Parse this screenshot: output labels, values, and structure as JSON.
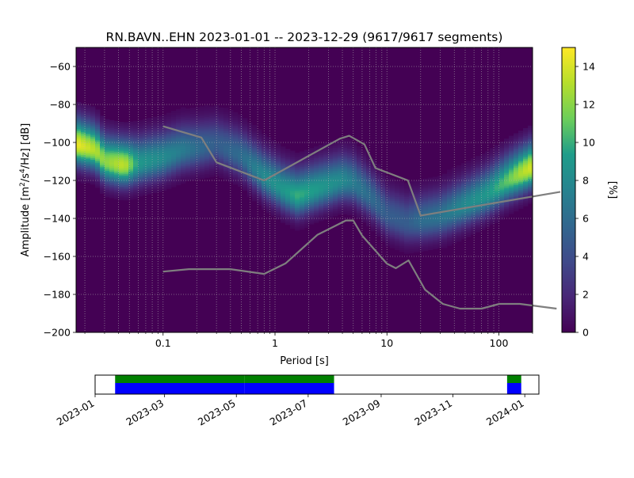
{
  "title": "RN.BAVN..EHN   2023-01-01 -- 2023-12-29  (9617/9617 segments)",
  "chart_data": {
    "type": "heatmap",
    "xlabel": "Period [s]",
    "ylabel_text": "Amplitude [m",
    "ylabel_sup1": "2",
    "ylabel_mid": "/s",
    "ylabel_sup2": "4",
    "ylabel_end": "/Hz] [dB]",
    "x_scale": "log",
    "xlim": [
      0.0167,
      200
    ],
    "ylim": [
      -200,
      -50
    ],
    "x_ticks": [
      {
        "value": 0.1,
        "label": "0.1"
      },
      {
        "value": 1,
        "label": "1"
      },
      {
        "value": 10,
        "label": "10"
      },
      {
        "value": 100,
        "label": "100"
      }
    ],
    "y_ticks": [
      {
        "value": -60,
        "label": "−60"
      },
      {
        "value": -80,
        "label": "−80"
      },
      {
        "value": -100,
        "label": "−100"
      },
      {
        "value": -120,
        "label": "−120"
      },
      {
        "value": -140,
        "label": "−140"
      },
      {
        "value": -160,
        "label": "−160"
      },
      {
        "value": -180,
        "label": "−180"
      },
      {
        "value": -200,
        "label": "−200"
      }
    ],
    "grid": true,
    "colorbar": {
      "label": "[%]",
      "min": 0,
      "max": 15,
      "ticks": [
        {
          "value": 0,
          "label": "0"
        },
        {
          "value": 2,
          "label": "2"
        },
        {
          "value": 4,
          "label": "4"
        },
        {
          "value": 6,
          "label": "6"
        },
        {
          "value": 8,
          "label": "8"
        },
        {
          "value": 10,
          "label": "10"
        },
        {
          "value": 12,
          "label": "12"
        },
        {
          "value": 14,
          "label": "14"
        }
      ],
      "colormap": [
        "#440154",
        "#482777",
        "#3f4a8a",
        "#31678e",
        "#26838f",
        "#1f9d8a",
        "#6cce5a",
        "#b6de2b",
        "#fee825"
      ],
      "background": "#440154"
    },
    "noise_models": [
      {
        "periods": [
          0.1,
          0.22,
          0.3,
          0.8,
          3.8,
          4.6,
          6.3,
          7.9,
          15.4,
          20,
          354
        ],
        "values": [
          -91.5,
          -97.4,
          -110.5,
          -120,
          -98,
          -96.5,
          -101,
          -113.5,
          -120,
          -138.5,
          -126
        ]
      },
      {
        "periods": [
          0.1,
          0.17,
          0.4,
          0.8,
          1.24,
          2.4,
          4.3,
          5,
          6,
          10,
          12,
          15.6,
          21.9,
          31.6,
          45,
          70,
          101,
          154,
          328
        ],
        "values": [
          -168,
          -166.7,
          -166.7,
          -169.2,
          -163.7,
          -148.6,
          -141.1,
          -141.1,
          -149,
          -163.8,
          -166.2,
          -162.1,
          -177.5,
          -185,
          -187.5,
          -187.5,
          -185,
          -185,
          -187.5
        ]
      }
    ],
    "noise_model_color": "#7f7f7f",
    "psd_ridge": [
      {
        "period": 0.017,
        "db": -101,
        "pct": 14.5
      },
      {
        "period": 0.025,
        "db": -104,
        "pct": 13
      },
      {
        "period": 0.03,
        "db": -110,
        "pct": 12
      },
      {
        "period": 0.045,
        "db": -112,
        "pct": 13.5
      },
      {
        "period": 0.06,
        "db": -111,
        "pct": 9
      },
      {
        "period": 0.1,
        "db": -108,
        "pct": 8
      },
      {
        "period": 0.15,
        "db": -104,
        "pct": 7
      },
      {
        "period": 0.2,
        "db": -103,
        "pct": 6
      },
      {
        "period": 0.3,
        "db": -101,
        "pct": 5
      },
      {
        "period": 0.5,
        "db": -107,
        "pct": 6
      },
      {
        "period": 0.8,
        "db": -118,
        "pct": 8
      },
      {
        "period": 1.2,
        "db": -125,
        "pct": 9
      },
      {
        "period": 1.6,
        "db": -128,
        "pct": 10
      },
      {
        "period": 2.5,
        "db": -124,
        "pct": 9
      },
      {
        "period": 4,
        "db": -120,
        "pct": 8
      },
      {
        "period": 5,
        "db": -121,
        "pct": 7
      },
      {
        "period": 7,
        "db": -128,
        "pct": 6
      },
      {
        "period": 10,
        "db": -138,
        "pct": 5
      },
      {
        "period": 15,
        "db": -142,
        "pct": 5
      },
      {
        "period": 20,
        "db": -141,
        "pct": 6
      },
      {
        "period": 30,
        "db": -139,
        "pct": 6.5
      },
      {
        "period": 50,
        "db": -133,
        "pct": 8
      },
      {
        "period": 80,
        "db": -127,
        "pct": 9
      },
      {
        "period": 120,
        "db": -120,
        "pct": 11
      },
      {
        "period": 160,
        "db": -116,
        "pct": 13
      },
      {
        "period": 200,
        "db": -113,
        "pct": 14
      }
    ]
  },
  "timeline": {
    "start": "2023-01-01",
    "end": "2024-01-13",
    "tick_labels": [
      "2023-01",
      "2023-03",
      "2023-05",
      "2023-07",
      "2023-09",
      "2023-11",
      "2024-01"
    ],
    "tick_dates": [
      "2023-01-01",
      "2023-03-01",
      "2023-05-01",
      "2023-07-01",
      "2023-09-01",
      "2023-11-01",
      "2024-01-01"
    ],
    "coverage": [
      {
        "from": "2023-01-18",
        "to": "2023-05-08"
      },
      {
        "from": "2023-05-08",
        "to": "2023-07-23"
      },
      {
        "from": "2023-12-17",
        "to": "2023-12-29"
      }
    ],
    "colors": {
      "top": "#008000",
      "bottom": "#0000ff",
      "gap": "#ffffff"
    }
  }
}
